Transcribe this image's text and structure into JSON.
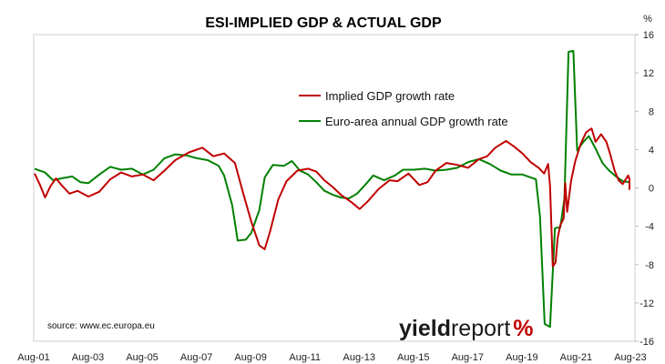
{
  "chart_data": {
    "type": "line",
    "title": "ESI-IMPLIED GDP & ACTUAL GDP",
    "y_unit": "%",
    "ylim": [
      -16,
      16
    ],
    "y_ticks": [
      "16",
      "12",
      "8",
      "4",
      "0",
      "-4",
      "-8",
      "-12",
      "-16"
    ],
    "xlim": [
      2001.58,
      2023.75
    ],
    "x_ticks": [
      {
        "label": "Aug-01",
        "t": 2001.58
      },
      {
        "label": "Aug-03",
        "t": 2003.58
      },
      {
        "label": "Aug-05",
        "t": 2005.58
      },
      {
        "label": "Aug-07",
        "t": 2007.58
      },
      {
        "label": "Aug-09",
        "t": 2009.58
      },
      {
        "label": "Aug-11",
        "t": 2011.58
      },
      {
        "label": "Aug-13",
        "t": 2013.58
      },
      {
        "label": "Aug-15",
        "t": 2015.58
      },
      {
        "label": "Aug-17",
        "t": 2017.58
      },
      {
        "label": "Aug-19",
        "t": 2019.58
      },
      {
        "label": "Aug-21",
        "t": 2021.58
      },
      {
        "label": "Aug-23",
        "t": 2023.58
      }
    ],
    "grid": false,
    "legend_position": "top-center",
    "series": [
      {
        "name": "Implied GDP growth rate",
        "color": "#c00000",
        "points": [
          [
            2001.58,
            1.5
          ],
          [
            2001.8,
            0.4
          ],
          [
            2002.0,
            -1.0
          ],
          [
            2002.2,
            0.2
          ],
          [
            2002.4,
            1.0
          ],
          [
            2002.6,
            0.3
          ],
          [
            2002.9,
            -0.6
          ],
          [
            2003.2,
            -0.3
          ],
          [
            2003.6,
            -0.9
          ],
          [
            2004.0,
            -0.4
          ],
          [
            2004.4,
            0.9
          ],
          [
            2004.8,
            1.6
          ],
          [
            2005.2,
            1.2
          ],
          [
            2005.6,
            1.4
          ],
          [
            2006.0,
            0.8
          ],
          [
            2006.4,
            1.8
          ],
          [
            2006.8,
            2.9
          ],
          [
            2007.3,
            3.7
          ],
          [
            2007.8,
            4.2
          ],
          [
            2008.2,
            3.3
          ],
          [
            2008.6,
            3.6
          ],
          [
            2009.0,
            2.6
          ],
          [
            2009.3,
            -0.5
          ],
          [
            2009.6,
            -3.5
          ],
          [
            2009.9,
            -6.0
          ],
          [
            2010.1,
            -6.4
          ],
          [
            2010.3,
            -4.5
          ],
          [
            2010.6,
            -1.2
          ],
          [
            2010.9,
            0.7
          ],
          [
            2011.3,
            1.8
          ],
          [
            2011.7,
            2.0
          ],
          [
            2012.0,
            1.7
          ],
          [
            2012.3,
            0.8
          ],
          [
            2012.6,
            0.1
          ],
          [
            2012.9,
            -0.7
          ],
          [
            2013.3,
            -1.5
          ],
          [
            2013.6,
            -2.2
          ],
          [
            2013.9,
            -1.4
          ],
          [
            2014.3,
            -0.1
          ],
          [
            2014.7,
            0.8
          ],
          [
            2015.0,
            0.7
          ],
          [
            2015.4,
            1.5
          ],
          [
            2015.8,
            0.3
          ],
          [
            2016.1,
            0.6
          ],
          [
            2016.4,
            1.8
          ],
          [
            2016.8,
            2.6
          ],
          [
            2017.2,
            2.4
          ],
          [
            2017.6,
            2.1
          ],
          [
            2018.0,
            3.0
          ],
          [
            2018.3,
            3.3
          ],
          [
            2018.6,
            4.2
          ],
          [
            2019.0,
            4.9
          ],
          [
            2019.3,
            4.3
          ],
          [
            2019.6,
            3.6
          ],
          [
            2019.9,
            2.7
          ],
          [
            2020.2,
            2.1
          ],
          [
            2020.4,
            1.5
          ],
          [
            2020.55,
            2.5
          ],
          [
            2020.62,
            0.2
          ],
          [
            2020.72,
            -8.2
          ],
          [
            2020.82,
            -7.8
          ],
          [
            2020.9,
            -5.2
          ],
          [
            2021.0,
            -3.9
          ],
          [
            2021.12,
            -3.2
          ],
          [
            2021.18,
            0.5
          ],
          [
            2021.25,
            -2.5
          ],
          [
            2021.4,
            0.8
          ],
          [
            2021.55,
            2.8
          ],
          [
            2021.75,
            4.6
          ],
          [
            2021.95,
            5.8
          ],
          [
            2022.15,
            6.2
          ],
          [
            2022.3,
            4.8
          ],
          [
            2022.5,
            5.6
          ],
          [
            2022.7,
            4.8
          ],
          [
            2022.85,
            3.4
          ],
          [
            2023.0,
            1.8
          ],
          [
            2023.15,
            0.8
          ],
          [
            2023.3,
            0.4
          ],
          [
            2023.5,
            1.3
          ],
          [
            2023.6,
            0.9
          ],
          [
            2023.75,
            0.4
          ],
          [
            2023.9,
            0.1
          ],
          [
            2024.05,
            0.6
          ],
          [
            2024.2,
            0.4
          ],
          [
            2024.35,
            -0.2
          ]
        ]
      },
      {
        "name": "Euro-area annual GDP growth rate",
        "color": "#008000",
        "points": [
          [
            2001.58,
            2.0
          ],
          [
            2002.0,
            1.6
          ],
          [
            2002.3,
            0.8
          ],
          [
            2002.6,
            1.0
          ],
          [
            2003.0,
            1.2
          ],
          [
            2003.3,
            0.6
          ],
          [
            2003.6,
            0.5
          ],
          [
            2004.0,
            1.4
          ],
          [
            2004.4,
            2.2
          ],
          [
            2004.8,
            1.9
          ],
          [
            2005.2,
            2.0
          ],
          [
            2005.6,
            1.4
          ],
          [
            2006.0,
            1.9
          ],
          [
            2006.4,
            3.1
          ],
          [
            2006.8,
            3.5
          ],
          [
            2007.2,
            3.4
          ],
          [
            2007.6,
            3.1
          ],
          [
            2008.0,
            2.9
          ],
          [
            2008.4,
            2.3
          ],
          [
            2008.6,
            1.3
          ],
          [
            2008.9,
            -1.8
          ],
          [
            2009.1,
            -5.5
          ],
          [
            2009.4,
            -5.4
          ],
          [
            2009.6,
            -4.7
          ],
          [
            2009.9,
            -2.3
          ],
          [
            2010.1,
            1.1
          ],
          [
            2010.4,
            2.4
          ],
          [
            2010.8,
            2.3
          ],
          [
            2011.1,
            2.8
          ],
          [
            2011.4,
            1.8
          ],
          [
            2011.7,
            1.4
          ],
          [
            2012.0,
            0.6
          ],
          [
            2012.3,
            -0.3
          ],
          [
            2012.6,
            -0.7
          ],
          [
            2012.9,
            -1.0
          ],
          [
            2013.2,
            -1.1
          ],
          [
            2013.5,
            -0.6
          ],
          [
            2013.8,
            0.3
          ],
          [
            2014.1,
            1.3
          ],
          [
            2014.5,
            0.8
          ],
          [
            2014.9,
            1.3
          ],
          [
            2015.2,
            1.9
          ],
          [
            2015.6,
            1.9
          ],
          [
            2016.0,
            2.0
          ],
          [
            2016.4,
            1.8
          ],
          [
            2016.8,
            1.9
          ],
          [
            2017.2,
            2.1
          ],
          [
            2017.6,
            2.7
          ],
          [
            2018.0,
            3.0
          ],
          [
            2018.4,
            2.5
          ],
          [
            2018.8,
            1.8
          ],
          [
            2019.2,
            1.4
          ],
          [
            2019.6,
            1.4
          ],
          [
            2019.9,
            1.1
          ],
          [
            2020.1,
            0.9
          ],
          [
            2020.25,
            -3.0
          ],
          [
            2020.42,
            -14.2
          ],
          [
            2020.62,
            -14.5
          ],
          [
            2020.8,
            -4.2
          ],
          [
            2021.0,
            -4.1
          ],
          [
            2021.15,
            -1.1
          ],
          [
            2021.3,
            14.2
          ],
          [
            2021.48,
            14.3
          ],
          [
            2021.62,
            3.9
          ],
          [
            2021.85,
            4.8
          ],
          [
            2022.05,
            5.4
          ],
          [
            2022.3,
            4.1
          ],
          [
            2022.55,
            2.6
          ],
          [
            2022.8,
            1.8
          ],
          [
            2023.05,
            1.2
          ],
          [
            2023.3,
            0.7
          ],
          [
            2023.6,
            0.6
          ],
          [
            2023.75,
            0.1
          ]
        ]
      }
    ],
    "source": "source: www.ec.europa.eu",
    "brand": {
      "part1": "yield",
      "part2": "report",
      "part3": "%"
    }
  }
}
